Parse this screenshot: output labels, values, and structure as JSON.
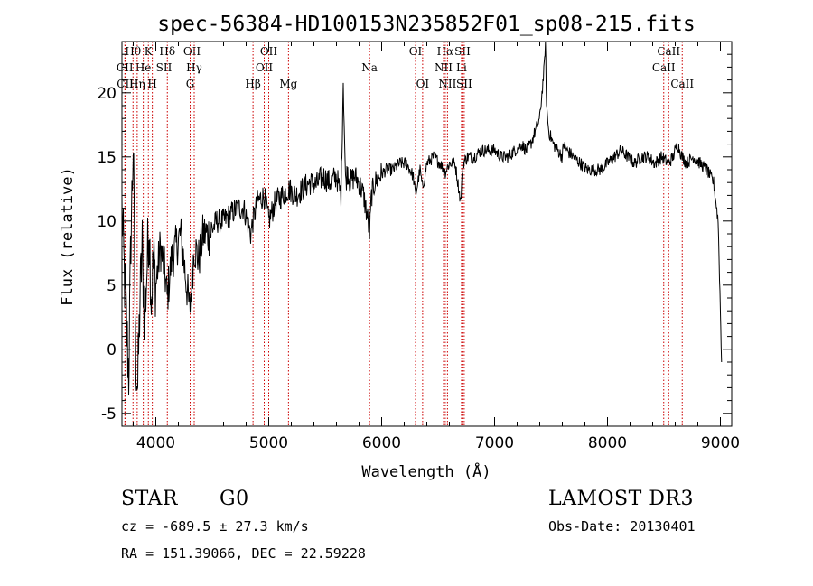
{
  "chart_data": {
    "type": "line",
    "title": "spec-56384-HD100153N235852F01_sp08-215.fits",
    "xlabel": "Wavelength (Å)",
    "ylabel": "Flux (relative)",
    "xlim": [
      3700,
      9100
    ],
    "ylim": [
      -6,
      24
    ],
    "xticks": [
      4000,
      5000,
      6000,
      7000,
      8000,
      9000
    ],
    "yticks": [
      -5,
      0,
      5,
      10,
      15,
      20
    ],
    "series": [
      {
        "name": "spectrum",
        "x": [
          3700,
          3720,
          3740,
          3760,
          3780,
          3800,
          3820,
          3840,
          3860,
          3880,
          3900,
          3920,
          3940,
          3960,
          3980,
          4000,
          4040,
          4080,
          4100,
          4140,
          4180,
          4220,
          4260,
          4300,
          4340,
          4380,
          4420,
          4480,
          4540,
          4600,
          4660,
          4720,
          4780,
          4840,
          4860,
          4900,
          4960,
          5000,
          5060,
          5120,
          5180,
          5240,
          5300,
          5360,
          5420,
          5480,
          5540,
          5600,
          5640,
          5660,
          5680,
          5700,
          5720,
          5760,
          5800,
          5840,
          5880,
          5893,
          5910,
          5940,
          5980,
          6040,
          6100,
          6160,
          6220,
          6280,
          6300,
          6340,
          6363,
          6400,
          6460,
          6520,
          6563,
          6600,
          6650,
          6700,
          6720,
          6760,
          6820,
          6880,
          6940,
          7000,
          7060,
          7120,
          7180,
          7240,
          7280,
          7320,
          7360,
          7400,
          7420,
          7440,
          7450,
          7460,
          7480,
          7520,
          7560,
          7600,
          7610,
          7640,
          7700,
          7760,
          7820,
          7880,
          7940,
          8000,
          8060,
          8120,
          8180,
          8240,
          8300,
          8360,
          8420,
          8480,
          8542,
          8580,
          8620,
          8662,
          8700,
          8760,
          8820,
          8880,
          8940,
          8980,
          9000,
          9010
        ],
        "values": [
          11,
          6,
          2,
          -2,
          9,
          16,
          0,
          -3,
          4,
          8,
          2,
          6,
          10,
          4,
          7,
          5,
          8,
          6,
          4,
          7,
          8,
          9,
          6,
          3,
          8,
          7,
          9,
          9,
          10,
          10,
          10.5,
          11,
          11,
          9,
          10,
          11.5,
          12,
          10,
          11.5,
          12,
          12.5,
          12,
          12.5,
          13,
          12.8,
          13.5,
          13,
          13.5,
          12,
          21,
          13,
          14,
          13,
          13.5,
          13,
          12,
          10,
          9,
          12,
          13,
          13.5,
          14,
          14,
          14.5,
          14.5,
          13.5,
          12,
          14,
          12.5,
          14.5,
          15,
          14.5,
          13.8,
          14.5,
          14.5,
          11.5,
          14.5,
          15,
          15,
          15.5,
          15.5,
          15.5,
          15,
          15,
          15.5,
          16,
          15.5,
          16,
          17,
          18,
          20,
          22,
          24,
          19,
          17,
          16,
          15.5,
          15,
          16,
          15.5,
          15,
          14.5,
          14,
          14,
          14,
          14.5,
          15,
          15.5,
          15,
          14.5,
          15,
          15,
          14.5,
          15,
          14.5,
          15,
          16,
          15,
          14.5,
          15,
          14.5,
          14,
          13,
          10,
          3,
          -1
        ]
      }
    ],
    "line_markers": [
      {
        "label": "Hθ",
        "wavelength": 3798,
        "row": 0
      },
      {
        "label": "K",
        "wavelength": 3934,
        "row": 0
      },
      {
        "label": "Hδ",
        "wavelength": 4102,
        "row": 0
      },
      {
        "label": "OII",
        "wavelength": 4320,
        "row": 0
      },
      {
        "label": "OII",
        "wavelength": 5000,
        "row": 0
      },
      {
        "label": "OI",
        "wavelength": 6300,
        "row": 0
      },
      {
        "label": "Hα",
        "wavelength": 6563,
        "row": 0
      },
      {
        "label": "SII",
        "wavelength": 6716,
        "row": 0
      },
      {
        "label": "CaII",
        "wavelength": 8542,
        "row": 0
      },
      {
        "label": "CII",
        "wavelength": 3726,
        "row": 1
      },
      {
        "label": "He",
        "wavelength": 3889,
        "row": 1
      },
      {
        "label": "SII",
        "wavelength": 4072,
        "row": 1
      },
      {
        "label": "Hγ",
        "wavelength": 4340,
        "row": 1
      },
      {
        "label": "OII",
        "wavelength": 4960,
        "row": 1
      },
      {
        "label": "Na",
        "wavelength": 5893,
        "row": 1
      },
      {
        "label": "NII",
        "wavelength": 6548,
        "row": 1
      },
      {
        "label": "Li",
        "wavelength": 6707,
        "row": 1
      },
      {
        "label": "CaII",
        "wavelength": 8498,
        "row": 1
      },
      {
        "label": "CII",
        "wavelength": 3729,
        "row": 2
      },
      {
        "label": "Hη",
        "wavelength": 3835,
        "row": 2
      },
      {
        "label": "H",
        "wavelength": 3969,
        "row": 2
      },
      {
        "label": "G",
        "wavelength": 4304,
        "row": 2
      },
      {
        "label": "Hβ",
        "wavelength": 4861,
        "row": 2
      },
      {
        "label": "Mg",
        "wavelength": 5175,
        "row": 2
      },
      {
        "label": "OI",
        "wavelength": 6363,
        "row": 2
      },
      {
        "label": "NII",
        "wavelength": 6583,
        "row": 2
      },
      {
        "label": "SII",
        "wavelength": 6731,
        "row": 2
      },
      {
        "label": "CaII",
        "wavelength": 8662,
        "row": 2
      }
    ]
  },
  "info": {
    "object_class": "STAR",
    "subclass": "G0",
    "survey": "LAMOST DR3",
    "cz": "cz = -689.5 ± 27.3 km/s",
    "obs_date": "Obs-Date: 20130401",
    "coords": "RA = 151.39066, DEC =  22.59228"
  },
  "colors": {
    "spectrum": "#000000",
    "marker_line": "#cc0000",
    "axes": "#000000",
    "background": "#ffffff"
  }
}
